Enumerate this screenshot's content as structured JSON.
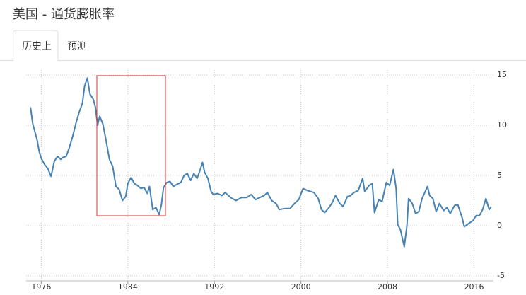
{
  "tabs": [
    "历史上",
    "预测"
  ],
  "chart_data": {
    "type": "line",
    "title": "美国 - 通货膨胀率",
    "x": [
      1975.0,
      1975.2,
      1975.4,
      1975.6,
      1975.8,
      1976.0,
      1976.3,
      1976.6,
      1976.9,
      1977.2,
      1977.5,
      1977.8,
      1978.0,
      1978.3,
      1978.6,
      1978.9,
      1979.2,
      1979.5,
      1979.8,
      1980.0,
      1980.25,
      1980.5,
      1980.8,
      1981.0,
      1981.2,
      1981.4,
      1981.7,
      1982.0,
      1982.3,
      1982.6,
      1982.9,
      1983.2,
      1983.5,
      1983.8,
      1984.0,
      1984.3,
      1984.6,
      1984.9,
      1985.2,
      1985.5,
      1985.8,
      1986.0,
      1986.3,
      1986.6,
      1986.9,
      1987.1,
      1987.3,
      1987.6,
      1987.9,
      1988.2,
      1988.5,
      1988.9,
      1989.2,
      1989.5,
      1989.8,
      1990.1,
      1990.4,
      1990.7,
      1990.9,
      1991.1,
      1991.4,
      1991.7,
      1991.9,
      1992.3,
      1992.7,
      1993.0,
      1993.5,
      1994.0,
      1994.5,
      1995.0,
      1995.4,
      1995.8,
      1996.2,
      1996.6,
      1996.9,
      1997.3,
      1997.7,
      1998.0,
      1998.5,
      1999.0,
      1999.4,
      1999.8,
      2000.2,
      2000.6,
      2000.9,
      2001.2,
      2001.6,
      2001.9,
      2002.2,
      2002.6,
      2002.9,
      2003.2,
      2003.6,
      2003.9,
      2004.3,
      2004.6,
      2004.9,
      2005.3,
      2005.7,
      2005.9,
      2006.3,
      2006.6,
      2006.8,
      2007.2,
      2007.5,
      2007.9,
      2008.2,
      2008.55,
      2008.8,
      2008.95,
      2009.2,
      2009.55,
      2009.8,
      2009.95,
      2010.3,
      2010.6,
      2010.9,
      2011.2,
      2011.7,
      2011.9,
      2012.2,
      2012.5,
      2012.8,
      2013.2,
      2013.5,
      2013.8,
      2014.2,
      2014.5,
      2014.9,
      2015.1,
      2015.5,
      2015.9,
      2016.2,
      2016.5,
      2016.8,
      2017.1,
      2017.4,
      2017.6
    ],
    "series": [
      {
        "color": "#4682b4",
        "values": [
          11.8,
          10.2,
          9.4,
          8.6,
          7.4,
          6.7,
          6.1,
          5.7,
          4.9,
          6.4,
          6.9,
          6.6,
          6.8,
          6.9,
          7.8,
          8.9,
          10.2,
          11.3,
          12.2,
          13.9,
          14.7,
          13.1,
          12.6,
          11.8,
          10.0,
          10.9,
          10.1,
          8.4,
          6.6,
          5.9,
          3.9,
          3.6,
          2.5,
          2.9,
          4.2,
          4.8,
          4.2,
          4.0,
          3.7,
          3.8,
          3.2,
          3.9,
          1.6,
          1.8,
          1.1,
          2.1,
          3.8,
          4.3,
          4.4,
          3.9,
          4.1,
          4.3,
          5.0,
          5.2,
          4.5,
          5.2,
          4.7,
          5.6,
          6.3,
          5.3,
          4.7,
          3.4,
          3.1,
          3.2,
          3.0,
          3.3,
          2.8,
          2.5,
          2.8,
          2.8,
          3.1,
          2.6,
          2.8,
          3.0,
          3.3,
          2.5,
          2.2,
          1.6,
          1.7,
          1.7,
          2.2,
          2.6,
          3.7,
          3.5,
          3.4,
          3.3,
          2.7,
          1.6,
          1.3,
          1.8,
          2.3,
          3.0,
          2.2,
          1.9,
          2.9,
          3.0,
          3.3,
          3.5,
          4.7,
          3.4,
          4.0,
          4.2,
          1.3,
          2.6,
          2.4,
          4.3,
          4.0,
          5.6,
          3.7,
          0.1,
          -0.4,
          -2.1,
          0.0,
          2.7,
          2.2,
          1.2,
          1.4,
          2.7,
          3.9,
          3.0,
          2.7,
          1.4,
          2.2,
          1.5,
          1.8,
          1.2,
          2.0,
          2.1,
          0.8,
          -0.1,
          0.2,
          0.5,
          1.0,
          1.0,
          1.6,
          2.7,
          1.6,
          1.9
        ]
      }
    ],
    "xlim": [
      1974.6,
      2017.8
    ],
    "xticks": [
      1976,
      1984,
      1992,
      2000,
      2008,
      2016
    ],
    "ylim": [
      -5.5,
      15.5
    ],
    "yticks": [
      -5,
      0,
      5,
      10,
      15
    ],
    "grid": true
  }
}
